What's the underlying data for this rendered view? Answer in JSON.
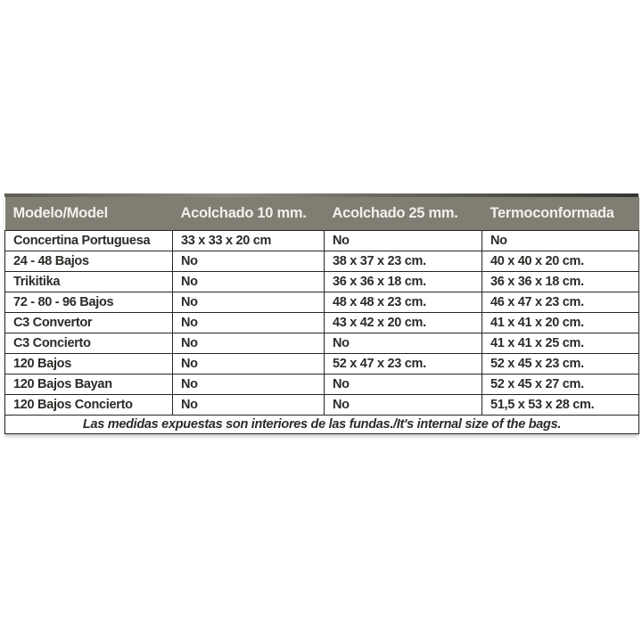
{
  "table": {
    "columns": [
      "Modelo/Model",
      "Acolchado 10 mm.",
      "Acolchado 25 mm.",
      "Termoconformada"
    ],
    "rows": [
      {
        "cells": [
          "Concertina Portuguesa",
          "33 x 33 x 20 cm",
          "No",
          "No"
        ]
      },
      {
        "cells": [
          "24 - 48 Bajos",
          "No",
          "38 x 37 x 23 cm.",
          "40 x 40 x 20 cm."
        ]
      },
      {
        "cells": [
          "Trikitika",
          "No",
          "36 x 36 x 18 cm.",
          "36 x 36 x 18 cm."
        ]
      },
      {
        "cells": [
          "72 - 80 - 96 Bajos",
          "No",
          "48 x 48 x 23 cm.",
          "46 x 47 x 23 cm."
        ]
      },
      {
        "cells": [
          "C3 Convertor",
          "No",
          "43 x 42 x 20 cm.",
          "41 x 41 x 20 cm."
        ]
      },
      {
        "cells": [
          "C3 Concierto",
          "No",
          "No",
          "41 x 41 x 25 cm."
        ]
      },
      {
        "cells": [
          "120 Bajos",
          "No",
          "52 x 47 x 23 cm.",
          "52 x 45 x 23 cm."
        ]
      },
      {
        "cells": [
          "120 Bajos Bayan",
          "No",
          "No",
          "52 x 45 x 27 cm."
        ]
      },
      {
        "cells": [
          "120 Bajos Concierto",
          "No",
          "No",
          "51,5 x 53 x 28 cm."
        ]
      }
    ],
    "footer": "Las medidas expuestas son interiores de las fundas./It's internal size of the bags."
  },
  "chart_data": {
    "type": "table",
    "title": "",
    "columns": [
      "Modelo/Model",
      "Acolchado 10 mm.",
      "Acolchado 25 mm.",
      "Termoconformada"
    ],
    "rows": [
      [
        "Concertina Portuguesa",
        "33 x 33 x 20 cm",
        "No",
        "No"
      ],
      [
        "24 - 48 Bajos",
        "No",
        "38 x 37 x 23 cm.",
        "40 x 40 x 20 cm."
      ],
      [
        "Trikitika",
        "No",
        "36 x 36 x 18 cm.",
        "36 x 36 x 18 cm."
      ],
      [
        "72 - 80 - 96 Bajos",
        "No",
        "48 x 48 x 23 cm.",
        "46 x 47 x 23 cm."
      ],
      [
        "C3 Convertor",
        "No",
        "43 x 42 x 20 cm.",
        "41 x 41 x 20 cm."
      ],
      [
        "C3 Concierto",
        "No",
        "No",
        "41 x 41 x 25 cm."
      ],
      [
        "120 Bajos",
        "No",
        "52 x 47 x 23 cm.",
        "52 x 45 x 23 cm."
      ],
      [
        "120 Bajos Bayan",
        "No",
        "No",
        "52 x 45 x 27 cm."
      ],
      [
        "120 Bajos Concierto",
        "No",
        "No",
        "51,5 x 53 x 28 cm."
      ]
    ],
    "footnote": "Las medidas expuestas son interiores de las fundas./It's internal size of the bags."
  },
  "colors": {
    "header_bg": "#807e73",
    "header_text": "#f1f0ea",
    "cell_text": "#2b2b28",
    "border": "#26261f",
    "top_bar_start": "#5d5c57",
    "top_bar_end": "#33332f",
    "page_bg": "#ffffff"
  }
}
